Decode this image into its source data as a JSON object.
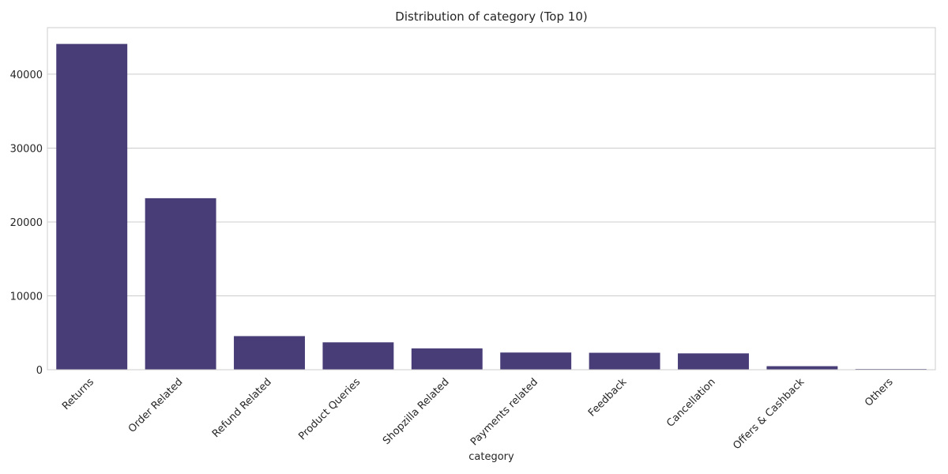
{
  "chart_data": {
    "type": "bar",
    "title": "Distribution of category (Top 10)",
    "xlabel": "category",
    "ylabel": "",
    "categories": [
      "Returns",
      "Order Related",
      "Refund Related",
      "Product Queries",
      "Shopzilla Related",
      "Payments related",
      "Feedback",
      "Cancellation",
      "Offers & Cashback",
      "Others"
    ],
    "values": [
      44097,
      23215,
      4550,
      3708,
      2882,
      2327,
      2294,
      2212,
      480,
      99
    ],
    "ylim": [
      0,
      46300
    ],
    "yticks": [
      0,
      10000,
      20000,
      30000,
      40000
    ],
    "grid": true,
    "legend": "none",
    "bar_color": "#483d77"
  }
}
